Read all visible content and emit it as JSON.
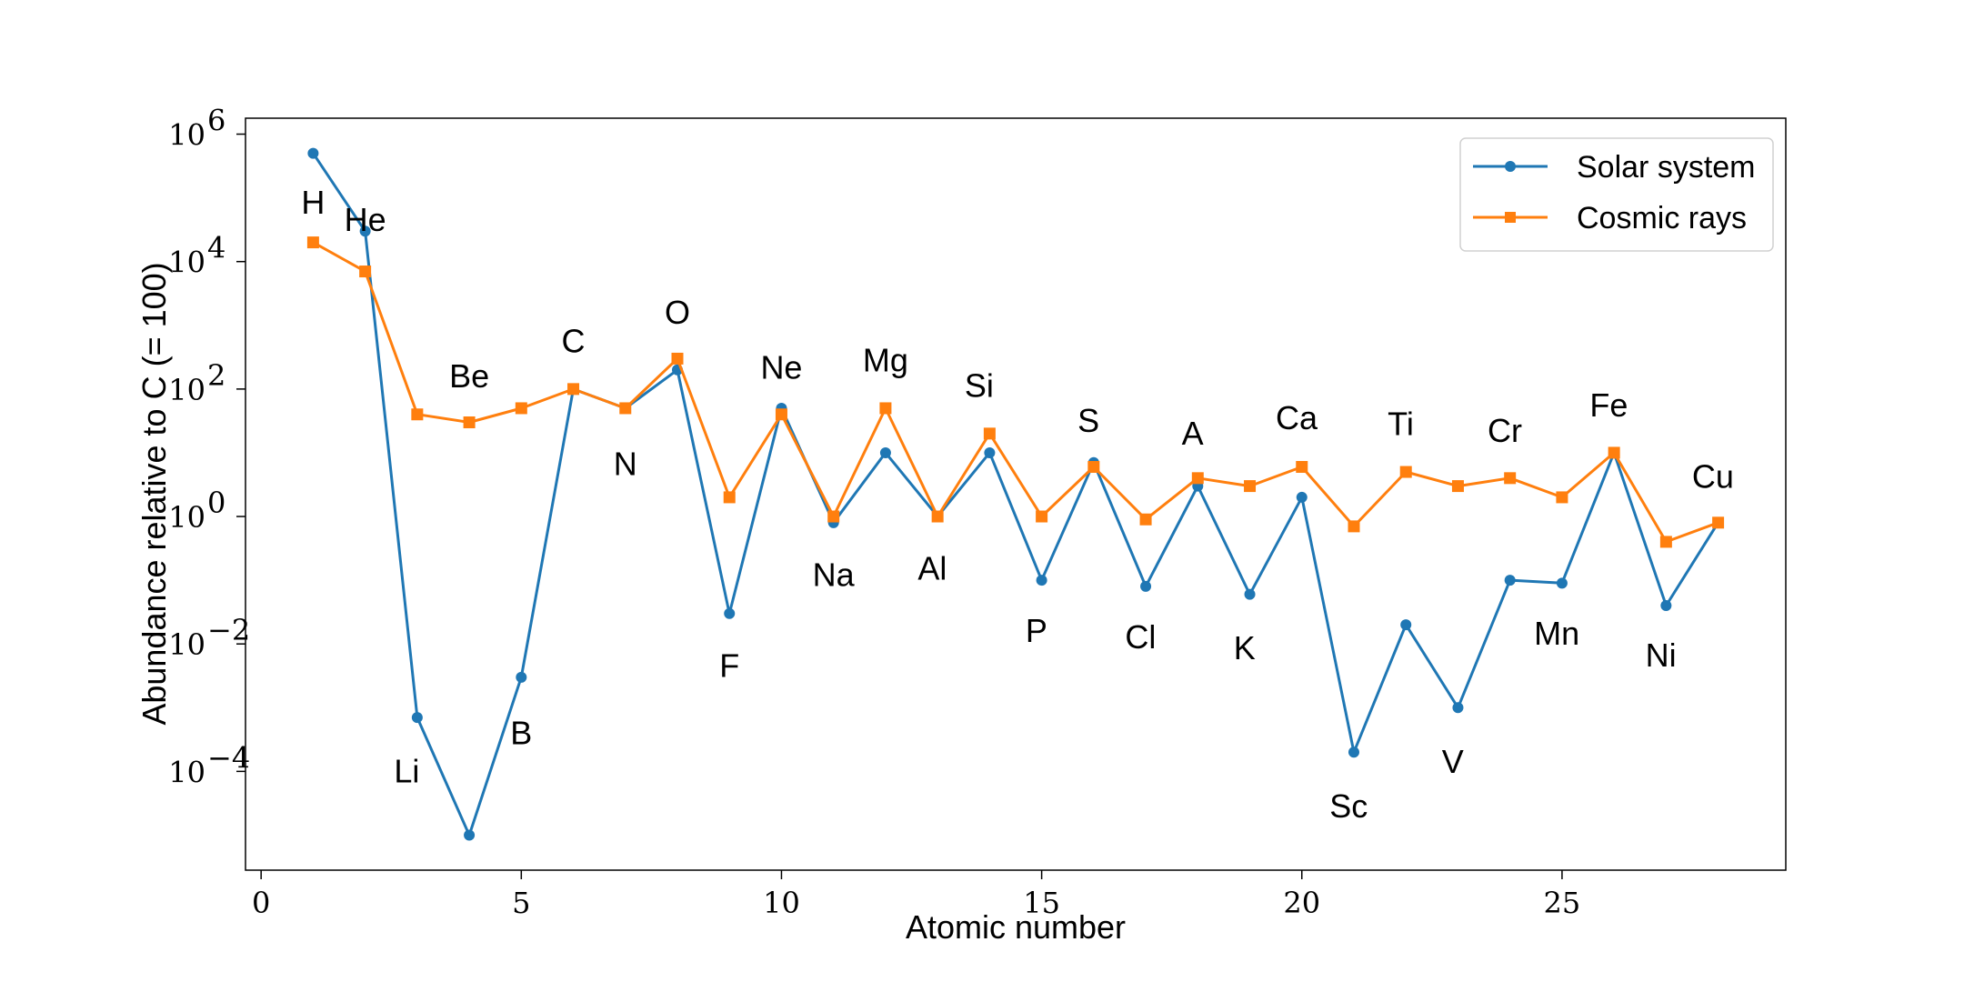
{
  "chart_data": {
    "type": "line",
    "title": "",
    "xlabel": "Atomic number",
    "ylabel": "Abundance relative to C (= 100)",
    "yscale": "log",
    "xlim": [
      -0.3,
      29.3
    ],
    "ylim_log10": [
      -5.55,
      6.25
    ],
    "xticks": [
      0,
      5,
      10,
      15,
      20,
      25
    ],
    "yticks": [
      {
        "exp": 6,
        "base": "10",
        "power": "6"
      },
      {
        "exp": 4,
        "base": "10",
        "power": "4"
      },
      {
        "exp": 2,
        "base": "10",
        "power": "2"
      },
      {
        "exp": 0,
        "base": "10",
        "power": "0"
      },
      {
        "exp": -2,
        "base": "10",
        "power": "−2"
      },
      {
        "exp": -4,
        "base": "10",
        "power": "−4"
      }
    ],
    "grid": false,
    "legend_position": "top-right",
    "x": [
      1,
      2,
      3,
      4,
      5,
      6,
      7,
      8,
      9,
      10,
      11,
      12,
      13,
      14,
      15,
      16,
      17,
      18,
      19,
      20,
      21,
      22,
      23,
      24,
      25,
      26,
      27,
      28
    ],
    "series": [
      {
        "name": "Solar system",
        "color": "#1f77b4",
        "marker": "circle",
        "values": [
          500000,
          30000,
          0.0007,
          1e-05,
          0.003,
          100,
          50,
          200,
          0.03,
          50,
          0.8,
          10,
          1,
          10,
          0.1,
          7,
          0.08,
          3,
          0.06,
          2,
          0.0002,
          0.02,
          0.001,
          0.1,
          0.09,
          10,
          0.04,
          0.8
        ]
      },
      {
        "name": "Cosmic rays",
        "color": "#ff7f0e",
        "marker": "square",
        "values": [
          20000,
          7000,
          40,
          30,
          50,
          100,
          50,
          300,
          2,
          40,
          1,
          50,
          1,
          20,
          1,
          6,
          0.9,
          4,
          3,
          6,
          0.7,
          5,
          3,
          4,
          2,
          10,
          0.4,
          0.8
        ]
      }
    ],
    "annotations": [
      {
        "text": "H",
        "x": 1,
        "log10": 4.92
      },
      {
        "text": "He",
        "x": 2,
        "log10": 4.65
      },
      {
        "text": "Li",
        "x": 2.8,
        "log10": -4.0
      },
      {
        "text": "Be",
        "x": 4,
        "log10": 2.2
      },
      {
        "text": "B",
        "x": 5,
        "log10": -3.4
      },
      {
        "text": "C",
        "x": 6,
        "log10": 2.75
      },
      {
        "text": "N",
        "x": 7,
        "log10": 0.82
      },
      {
        "text": "O",
        "x": 8,
        "log10": 3.2
      },
      {
        "text": "F",
        "x": 9,
        "log10": -2.35
      },
      {
        "text": "Ne",
        "x": 10,
        "log10": 2.33
      },
      {
        "text": "Na",
        "x": 11,
        "log10": -0.92
      },
      {
        "text": "Mg",
        "x": 12,
        "log10": 2.45
      },
      {
        "text": "Al",
        "x": 12.9,
        "log10": -0.82
      },
      {
        "text": "Si",
        "x": 13.8,
        "log10": 2.05
      },
      {
        "text": "P",
        "x": 14.9,
        "log10": -1.8
      },
      {
        "text": "S",
        "x": 15.9,
        "log10": 1.5
      },
      {
        "text": "Cl",
        "x": 16.9,
        "log10": -1.9
      },
      {
        "text": "A",
        "x": 17.9,
        "log10": 1.3
      },
      {
        "text": "K",
        "x": 18.9,
        "log10": -2.07
      },
      {
        "text": "Ca",
        "x": 19.9,
        "log10": 1.54
      },
      {
        "text": "Sc",
        "x": 20.9,
        "log10": -4.55
      },
      {
        "text": "Ti",
        "x": 21.9,
        "log10": 1.45
      },
      {
        "text": "V",
        "x": 22.9,
        "log10": -3.85
      },
      {
        "text": "Cr",
        "x": 23.9,
        "log10": 1.34
      },
      {
        "text": "Mn",
        "x": 24.9,
        "log10": -1.84
      },
      {
        "text": "Ni",
        "x": 26.9,
        "log10": -2.18
      },
      {
        "text": "Fe",
        "x": 25.9,
        "log10": 1.74
      },
      {
        "text": "Cu",
        "x": 27.9,
        "log10": 0.62
      }
    ]
  }
}
